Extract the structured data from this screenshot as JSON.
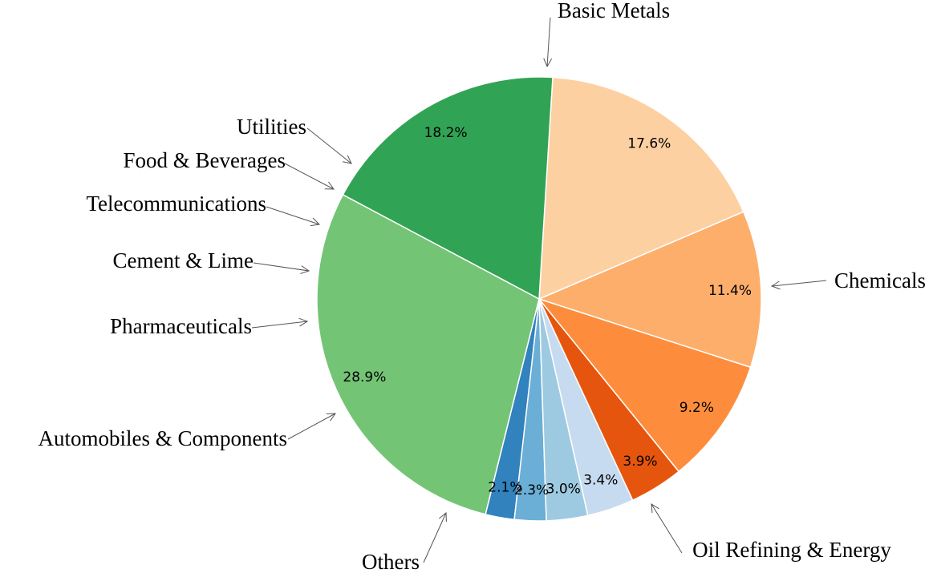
{
  "chart_data": {
    "type": "pie",
    "title": "",
    "slices": [
      {
        "label": "Basic Metals",
        "value": 28.9,
        "pct_label": "28.9%",
        "color": "#74c476"
      },
      {
        "label": "Utilities",
        "value": 2.1,
        "pct_label": "2.1%",
        "color": "#3182bd"
      },
      {
        "label": "Food & Beverages",
        "value": 2.3,
        "pct_label": "2.3%",
        "color": "#6baed6"
      },
      {
        "label": "Telecommunications",
        "value": 3.0,
        "pct_label": "3.0%",
        "color": "#9ecae1"
      },
      {
        "label": "Cement & Lime",
        "value": 3.4,
        "pct_label": "3.4%",
        "color": "#c6dbef"
      },
      {
        "label": "Pharmaceuticals",
        "value": 3.9,
        "pct_label": "3.9%",
        "color": "#e6550d"
      },
      {
        "label": "Automobiles & Components",
        "value": 9.2,
        "pct_label": "9.2%",
        "color": "#fd8d3c"
      },
      {
        "label": "Others",
        "value": 11.4,
        "pct_label": "11.4%",
        "color": "#fdae6b"
      },
      {
        "label": "Oil Refining & Energy",
        "value": 17.6,
        "pct_label": "17.6%",
        "color": "#fdd0a2"
      },
      {
        "label": "Chemicals",
        "value": 18.2,
        "pct_label": "18.2%",
        "color": "#31a354"
      }
    ]
  }
}
